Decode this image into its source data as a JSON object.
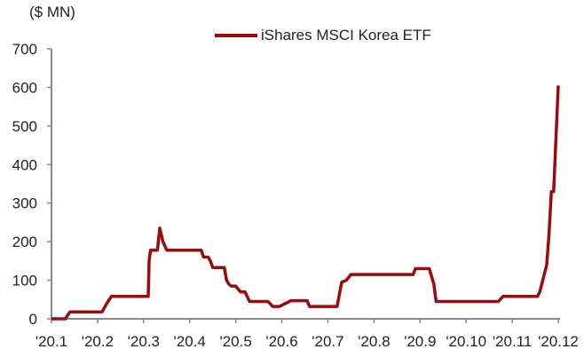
{
  "chart_data": {
    "type": "line",
    "title": "",
    "ylabel": "($ MN)",
    "xlabel": "",
    "ylim": [
      0,
      700
    ],
    "yticks": [
      0,
      100,
      200,
      300,
      400,
      500,
      600,
      700
    ],
    "categories": [
      "'20.1",
      "'20.2",
      "'20.3",
      "'20.4",
      "'20.5",
      "'20.6",
      "'20.7",
      "'20.8",
      "'20.9",
      "'20.10",
      "'20.11",
      "'20.12"
    ],
    "legend": [
      "iShares MSCI Korea ETF"
    ],
    "grid": false,
    "series": [
      {
        "name": "iShares MSCI Korea ETF",
        "color": "#9b0a0e",
        "x": [
          1.0,
          1.3,
          1.4,
          2.1,
          2.2,
          2.3,
          3.1,
          3.12,
          3.15,
          3.3,
          3.35,
          3.42,
          3.5,
          4.0,
          4.25,
          4.3,
          4.4,
          4.45,
          4.5,
          4.75,
          4.8,
          4.85,
          4.9,
          5.0,
          5.1,
          5.2,
          5.3,
          5.45,
          5.5,
          5.7,
          5.8,
          5.9,
          5.95,
          6.2,
          6.3,
          6.55,
          6.6,
          7.2,
          7.3,
          7.4,
          7.5,
          7.6,
          8.85,
          8.9,
          9.2,
          9.3,
          9.35,
          9.4,
          10.7,
          10.8,
          11.5,
          11.55,
          11.6,
          11.75,
          11.8,
          11.85,
          11.9,
          12.0
        ],
        "values": [
          0,
          0,
          18,
          18,
          40,
          58,
          58,
          150,
          178,
          178,
          235,
          200,
          178,
          178,
          178,
          160,
          160,
          150,
          133,
          133,
          100,
          90,
          85,
          85,
          70,
          70,
          45,
          45,
          45,
          45,
          32,
          32,
          32,
          47,
          47,
          47,
          32,
          32,
          95,
          100,
          115,
          115,
          115,
          130,
          130,
          90,
          45,
          45,
          45,
          58,
          58,
          58,
          70,
          140,
          220,
          330,
          330,
          605
        ]
      }
    ]
  },
  "axis": {
    "unit_label": "($ MN)"
  },
  "legend": {
    "label": "iShares MSCI Korea ETF"
  }
}
